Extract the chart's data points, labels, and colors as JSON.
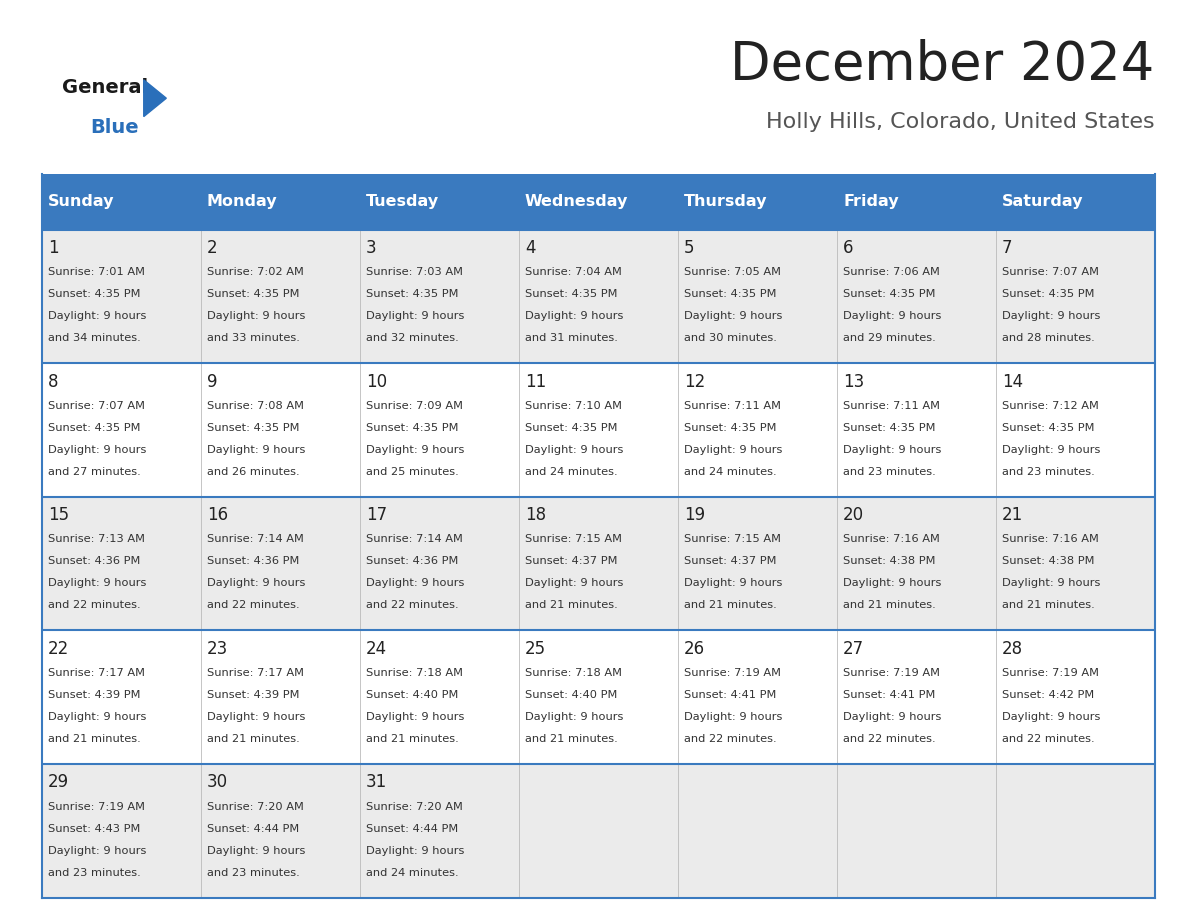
{
  "title": "December 2024",
  "subtitle": "Holly Hills, Colorado, United States",
  "days_of_week": [
    "Sunday",
    "Monday",
    "Tuesday",
    "Wednesday",
    "Thursday",
    "Friday",
    "Saturday"
  ],
  "header_bg": "#3a7abf",
  "header_text_color": "#ffffff",
  "row_bg_odd": "#ebebeb",
  "row_bg_even": "#ffffff",
  "cell_text_color": "#333333",
  "day_num_color": "#222222",
  "border_color": "#3a7abf",
  "title_color": "#222222",
  "subtitle_color": "#555555",
  "calendar_data": [
    [
      {
        "day": 1,
        "sunrise": "7:01 AM",
        "sunset": "4:35 PM",
        "daylight_hours": 9,
        "daylight_minutes": 34
      },
      {
        "day": 2,
        "sunrise": "7:02 AM",
        "sunset": "4:35 PM",
        "daylight_hours": 9,
        "daylight_minutes": 33
      },
      {
        "day": 3,
        "sunrise": "7:03 AM",
        "sunset": "4:35 PM",
        "daylight_hours": 9,
        "daylight_minutes": 32
      },
      {
        "day": 4,
        "sunrise": "7:04 AM",
        "sunset": "4:35 PM",
        "daylight_hours": 9,
        "daylight_minutes": 31
      },
      {
        "day": 5,
        "sunrise": "7:05 AM",
        "sunset": "4:35 PM",
        "daylight_hours": 9,
        "daylight_minutes": 30
      },
      {
        "day": 6,
        "sunrise": "7:06 AM",
        "sunset": "4:35 PM",
        "daylight_hours": 9,
        "daylight_minutes": 29
      },
      {
        "day": 7,
        "sunrise": "7:07 AM",
        "sunset": "4:35 PM",
        "daylight_hours": 9,
        "daylight_minutes": 28
      }
    ],
    [
      {
        "day": 8,
        "sunrise": "7:07 AM",
        "sunset": "4:35 PM",
        "daylight_hours": 9,
        "daylight_minutes": 27
      },
      {
        "day": 9,
        "sunrise": "7:08 AM",
        "sunset": "4:35 PM",
        "daylight_hours": 9,
        "daylight_minutes": 26
      },
      {
        "day": 10,
        "sunrise": "7:09 AM",
        "sunset": "4:35 PM",
        "daylight_hours": 9,
        "daylight_minutes": 25
      },
      {
        "day": 11,
        "sunrise": "7:10 AM",
        "sunset": "4:35 PM",
        "daylight_hours": 9,
        "daylight_minutes": 24
      },
      {
        "day": 12,
        "sunrise": "7:11 AM",
        "sunset": "4:35 PM",
        "daylight_hours": 9,
        "daylight_minutes": 24
      },
      {
        "day": 13,
        "sunrise": "7:11 AM",
        "sunset": "4:35 PM",
        "daylight_hours": 9,
        "daylight_minutes": 23
      },
      {
        "day": 14,
        "sunrise": "7:12 AM",
        "sunset": "4:35 PM",
        "daylight_hours": 9,
        "daylight_minutes": 23
      }
    ],
    [
      {
        "day": 15,
        "sunrise": "7:13 AM",
        "sunset": "4:36 PM",
        "daylight_hours": 9,
        "daylight_minutes": 22
      },
      {
        "day": 16,
        "sunrise": "7:14 AM",
        "sunset": "4:36 PM",
        "daylight_hours": 9,
        "daylight_minutes": 22
      },
      {
        "day": 17,
        "sunrise": "7:14 AM",
        "sunset": "4:36 PM",
        "daylight_hours": 9,
        "daylight_minutes": 22
      },
      {
        "day": 18,
        "sunrise": "7:15 AM",
        "sunset": "4:37 PM",
        "daylight_hours": 9,
        "daylight_minutes": 21
      },
      {
        "day": 19,
        "sunrise": "7:15 AM",
        "sunset": "4:37 PM",
        "daylight_hours": 9,
        "daylight_minutes": 21
      },
      {
        "day": 20,
        "sunrise": "7:16 AM",
        "sunset": "4:38 PM",
        "daylight_hours": 9,
        "daylight_minutes": 21
      },
      {
        "day": 21,
        "sunrise": "7:16 AM",
        "sunset": "4:38 PM",
        "daylight_hours": 9,
        "daylight_minutes": 21
      }
    ],
    [
      {
        "day": 22,
        "sunrise": "7:17 AM",
        "sunset": "4:39 PM",
        "daylight_hours": 9,
        "daylight_minutes": 21
      },
      {
        "day": 23,
        "sunrise": "7:17 AM",
        "sunset": "4:39 PM",
        "daylight_hours": 9,
        "daylight_minutes": 21
      },
      {
        "day": 24,
        "sunrise": "7:18 AM",
        "sunset": "4:40 PM",
        "daylight_hours": 9,
        "daylight_minutes": 21
      },
      {
        "day": 25,
        "sunrise": "7:18 AM",
        "sunset": "4:40 PM",
        "daylight_hours": 9,
        "daylight_minutes": 21
      },
      {
        "day": 26,
        "sunrise": "7:19 AM",
        "sunset": "4:41 PM",
        "daylight_hours": 9,
        "daylight_minutes": 22
      },
      {
        "day": 27,
        "sunrise": "7:19 AM",
        "sunset": "4:41 PM",
        "daylight_hours": 9,
        "daylight_minutes": 22
      },
      {
        "day": 28,
        "sunrise": "7:19 AM",
        "sunset": "4:42 PM",
        "daylight_hours": 9,
        "daylight_minutes": 22
      }
    ],
    [
      {
        "day": 29,
        "sunrise": "7:19 AM",
        "sunset": "4:43 PM",
        "daylight_hours": 9,
        "daylight_minutes": 23
      },
      {
        "day": 30,
        "sunrise": "7:20 AM",
        "sunset": "4:44 PM",
        "daylight_hours": 9,
        "daylight_minutes": 23
      },
      {
        "day": 31,
        "sunrise": "7:20 AM",
        "sunset": "4:44 PM",
        "daylight_hours": 9,
        "daylight_minutes": 24
      },
      null,
      null,
      null,
      null
    ]
  ],
  "logo_text_general": "General",
  "logo_text_blue": "Blue",
  "logo_color_general": "#1a1a1a",
  "logo_color_blue": "#2a6fba",
  "logo_triangle_color": "#2a6fba",
  "figsize": [
    11.88,
    9.18
  ],
  "dpi": 100
}
